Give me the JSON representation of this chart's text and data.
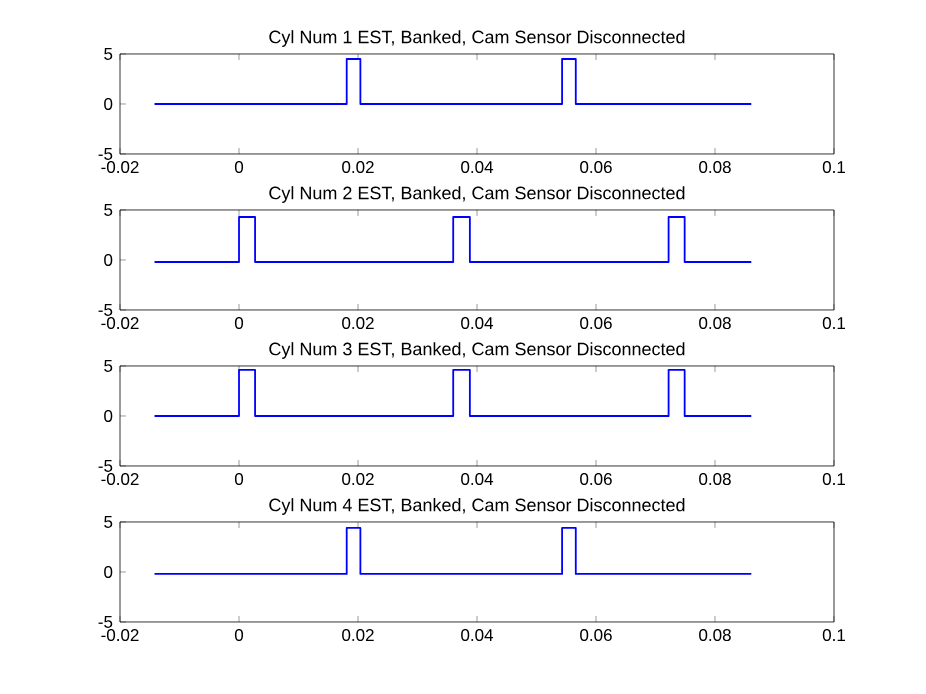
{
  "chart_data": [
    {
      "type": "line",
      "title": "Cyl Num 1 EST, Banked, Cam Sensor Disconnected",
      "x": [
        -0.0142,
        0.0181,
        0.0181,
        0.0204,
        0.0204,
        0.0543,
        0.0543,
        0.0566,
        0.0566,
        0.0861
      ],
      "series": [
        {
          "color": "#0000ff",
          "values": [
            0,
            0,
            4.5,
            4.5,
            0,
            0,
            4.5,
            4.5,
            0,
            0
          ]
        }
      ],
      "xlim": [
        -0.02,
        0.1
      ],
      "ylim": [
        -5,
        5
      ],
      "xticks": [
        -0.02,
        0,
        0.02,
        0.04,
        0.06,
        0.08,
        0.1
      ],
      "yticks": [
        -5,
        0,
        5
      ]
    },
    {
      "type": "line",
      "title": "Cyl Num 2 EST, Banked, Cam Sensor Disconnected",
      "x": [
        -0.0142,
        0,
        0,
        0.0027,
        0.0027,
        0.036,
        0.036,
        0.0388,
        0.0388,
        0.0722,
        0.0722,
        0.0749,
        0.0749,
        0.0861
      ],
      "series": [
        {
          "color": "#0000ff",
          "values": [
            -0.2,
            -0.2,
            4.3,
            4.3,
            -0.2,
            -0.2,
            4.3,
            4.3,
            -0.2,
            -0.2,
            4.3,
            4.3,
            -0.2,
            -0.2
          ]
        }
      ],
      "xlim": [
        -0.02,
        0.1
      ],
      "ylim": [
        -5,
        5
      ],
      "xticks": [
        -0.02,
        0,
        0.02,
        0.04,
        0.06,
        0.08,
        0.1
      ],
      "yticks": [
        -5,
        0,
        5
      ]
    },
    {
      "type": "line",
      "title": "Cyl Num 3 EST, Banked, Cam Sensor Disconnected",
      "x": [
        -0.0142,
        0,
        0,
        0.0027,
        0.0027,
        0.036,
        0.036,
        0.0388,
        0.0388,
        0.0722,
        0.0722,
        0.0749,
        0.0749,
        0.0861
      ],
      "series": [
        {
          "color": "#0000ff",
          "values": [
            0,
            0,
            4.6,
            4.6,
            0,
            0,
            4.6,
            4.6,
            0,
            0,
            4.6,
            4.6,
            0,
            0
          ]
        }
      ],
      "xlim": [
        -0.02,
        0.1
      ],
      "ylim": [
        -5,
        5
      ],
      "xticks": [
        -0.02,
        0,
        0.02,
        0.04,
        0.06,
        0.08,
        0.1
      ],
      "yticks": [
        -5,
        0,
        5
      ]
    },
    {
      "type": "line",
      "title": "Cyl Num 4 EST, Banked, Cam Sensor Disconnected",
      "x": [
        -0.0142,
        0.0181,
        0.0181,
        0.0204,
        0.0204,
        0.0543,
        0.0543,
        0.0566,
        0.0566,
        0.0861
      ],
      "series": [
        {
          "color": "#0000ff",
          "values": [
            -0.2,
            -0.2,
            4.4,
            4.4,
            -0.2,
            -0.2,
            4.4,
            4.4,
            -0.2,
            -0.2
          ]
        }
      ],
      "xlim": [
        -0.02,
        0.1
      ],
      "ylim": [
        -5,
        5
      ],
      "xticks": [
        -0.02,
        0,
        0.02,
        0.04,
        0.06,
        0.08,
        0.1
      ],
      "yticks": [
        -5,
        0,
        5
      ]
    }
  ]
}
